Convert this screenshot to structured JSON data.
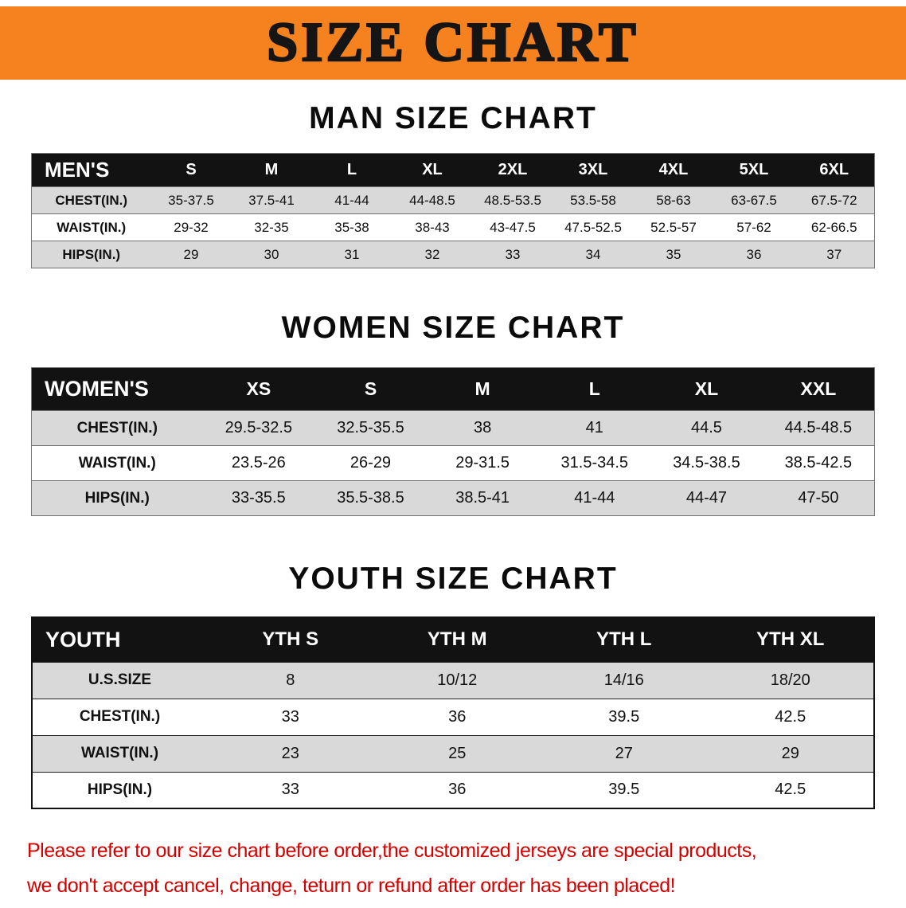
{
  "banner": {
    "title": "SIZE CHART"
  },
  "colors": {
    "banner-bg": "#f5821f",
    "table-header-bg": "#121212",
    "row-alt-bg": "#d9d9d9",
    "note-red": "#d40000"
  },
  "chart_data": [
    {
      "type": "table",
      "title": "MAN SIZE CHART",
      "corner": "MEN'S",
      "columns": [
        "S",
        "M",
        "L",
        "XL",
        "2XL",
        "3XL",
        "4XL",
        "5XL",
        "6XL"
      ],
      "rows": [
        {
          "label": "CHEST(IN.)",
          "values": [
            "35-37.5",
            "37.5-41",
            "41-44",
            "44-48.5",
            "48.5-53.5",
            "53.5-58",
            "58-63",
            "63-67.5",
            "67.5-72"
          ]
        },
        {
          "label": "WAIST(IN.)",
          "values": [
            "29-32",
            "32-35",
            "35-38",
            "38-43",
            "43-47.5",
            "47.5-52.5",
            "52.5-57",
            "57-62",
            "62-66.5"
          ]
        },
        {
          "label": "HIPS(IN.)",
          "values": [
            "29",
            "30",
            "31",
            "32",
            "33",
            "34",
            "35",
            "36",
            "37"
          ]
        }
      ]
    },
    {
      "type": "table",
      "title": "WOMEN SIZE CHART",
      "corner": "WOMEN'S",
      "columns": [
        "XS",
        "S",
        "M",
        "L",
        "XL",
        "XXL"
      ],
      "rows": [
        {
          "label": "CHEST(IN.)",
          "values": [
            "29.5-32.5",
            "32.5-35.5",
            "38",
            "41",
            "44.5",
            "44.5-48.5"
          ]
        },
        {
          "label": "WAIST(IN.)",
          "values": [
            "23.5-26",
            "26-29",
            "29-31.5",
            "31.5-34.5",
            "34.5-38.5",
            "38.5-42.5"
          ]
        },
        {
          "label": "HIPS(IN.)",
          "values": [
            "33-35.5",
            "35.5-38.5",
            "38.5-41",
            "41-44",
            "44-47",
            "47-50"
          ]
        }
      ]
    },
    {
      "type": "table",
      "title": "YOUTH SIZE CHART",
      "corner": "YOUTH",
      "columns": [
        "YTH S",
        "YTH M",
        "YTH L",
        "YTH XL"
      ],
      "rows": [
        {
          "label": "U.S.SIZE",
          "values": [
            "8",
            "10/12",
            "14/16",
            "18/20"
          ]
        },
        {
          "label": "CHEST(IN.)",
          "values": [
            "33",
            "36",
            "39.5",
            "42.5"
          ]
        },
        {
          "label": "WAIST(IN.)",
          "values": [
            "23",
            "25",
            "27",
            "29"
          ]
        },
        {
          "label": "HIPS(IN.)",
          "values": [
            "33",
            "36",
            "39.5",
            "42.5"
          ]
        }
      ]
    }
  ],
  "note": {
    "line1": "Please refer to our size chart before order,the customized jerseys are special products,",
    "line2": "we don't accept cancel, change, teturn or refund after order has been placed!"
  }
}
